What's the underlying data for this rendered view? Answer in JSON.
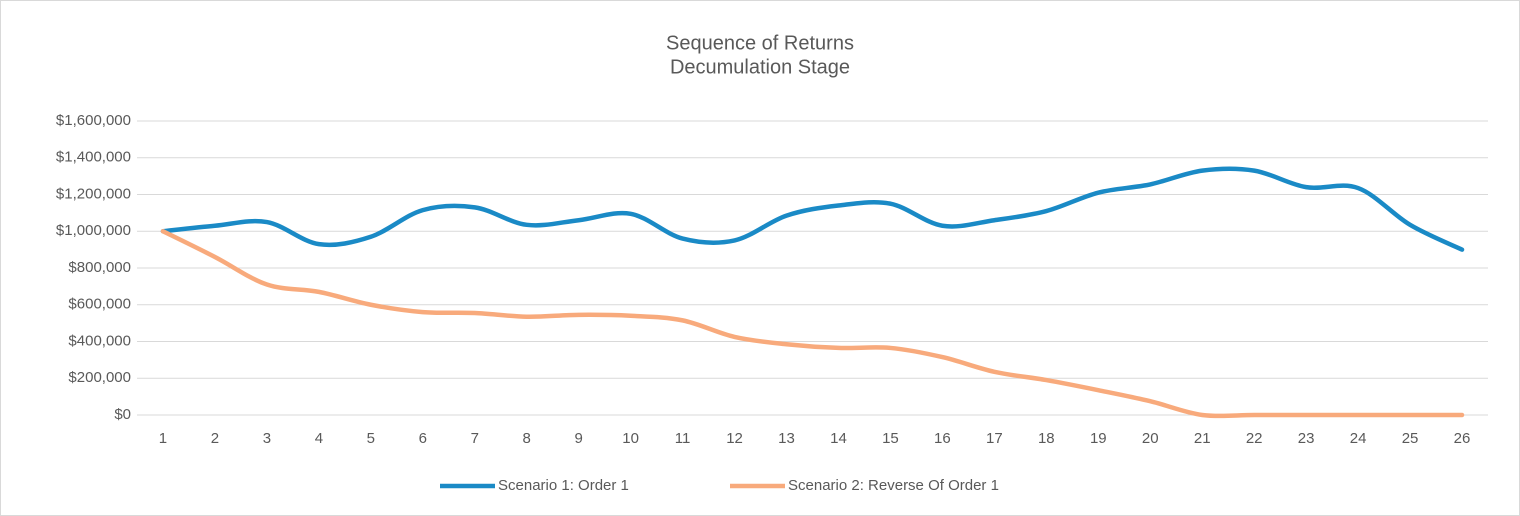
{
  "chart_data": {
    "type": "line",
    "title": "Sequence of Returns",
    "subtitle": "Decumulation Stage",
    "categories": [
      "1",
      "2",
      "3",
      "4",
      "5",
      "6",
      "7",
      "8",
      "9",
      "10",
      "11",
      "12",
      "13",
      "14",
      "15",
      "16",
      "17",
      "18",
      "19",
      "20",
      "21",
      "22",
      "23",
      "24",
      "25",
      "26"
    ],
    "series": [
      {
        "name": "Scenario 1: Order 1",
        "color": "#1a8ac6",
        "values": [
          1000000,
          1030000,
          1050000,
          930000,
          970000,
          1115000,
          1130000,
          1035000,
          1060000,
          1095000,
          960000,
          950000,
          1085000,
          1140000,
          1150000,
          1030000,
          1060000,
          1110000,
          1210000,
          1255000,
          1330000,
          1330000,
          1240000,
          1235000,
          1035000,
          900000
        ]
      },
      {
        "name": "Scenario 2: Reverse Of Order 1",
        "color": "#f8aa7c",
        "values": [
          1000000,
          860000,
          710000,
          670000,
          600000,
          560000,
          555000,
          535000,
          545000,
          540000,
          515000,
          425000,
          385000,
          365000,
          365000,
          315000,
          235000,
          190000,
          135000,
          75000,
          0,
          0,
          0,
          0,
          0,
          0
        ]
      }
    ],
    "ylim": [
      0,
      1600000
    ],
    "yticks": [
      {
        "value": 0,
        "label": "$0"
      },
      {
        "value": 200000,
        "label": "$200,000"
      },
      {
        "value": 400000,
        "label": "$400,000"
      },
      {
        "value": 600000,
        "label": "$600,000"
      },
      {
        "value": 800000,
        "label": "$800,000"
      },
      {
        "value": 1000000,
        "label": "$1,000,000"
      },
      {
        "value": 1200000,
        "label": "$1,200,000"
      },
      {
        "value": 1400000,
        "label": "$1,400,000"
      },
      {
        "value": 1600000,
        "label": "$1,600,000"
      }
    ],
    "grid": true,
    "legend": "bottom",
    "smooth": true
  }
}
